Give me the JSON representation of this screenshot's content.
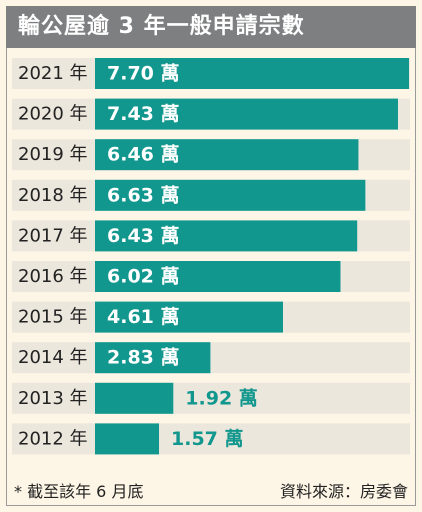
{
  "chart_data": {
    "type": "bar",
    "title": "輪公屋逾 3 年一般申請宗數",
    "categories": [
      "2021 年",
      "2020 年",
      "2019 年",
      "2018 年",
      "2017 年",
      "2016 年",
      "2015 年",
      "2014 年",
      "2013 年",
      "2012 年"
    ],
    "values": [
      7.7,
      7.43,
      6.46,
      6.63,
      6.43,
      6.02,
      4.61,
      2.83,
      1.92,
      1.57
    ],
    "value_labels": [
      "7.70 萬",
      "7.43 萬",
      "6.46 萬",
      "6.63 萬",
      "6.43 萬",
      "6.02 萬",
      "4.61 萬",
      "2.83 萬",
      "1.92 萬",
      "1.57 萬"
    ],
    "xlim": [
      0,
      7.7
    ],
    "orientation": "horizontal",
    "grid": false
  },
  "footnote": "* 截至該年 6 月底",
  "source": "資料來源：房委會",
  "colors": {
    "bar": "#11978d",
    "row_band": "#ece7dd",
    "background": "#fdf6e6",
    "title_bar": "#7e7f80",
    "outside_label": "#11978d",
    "inside_label": "#ffffff"
  }
}
